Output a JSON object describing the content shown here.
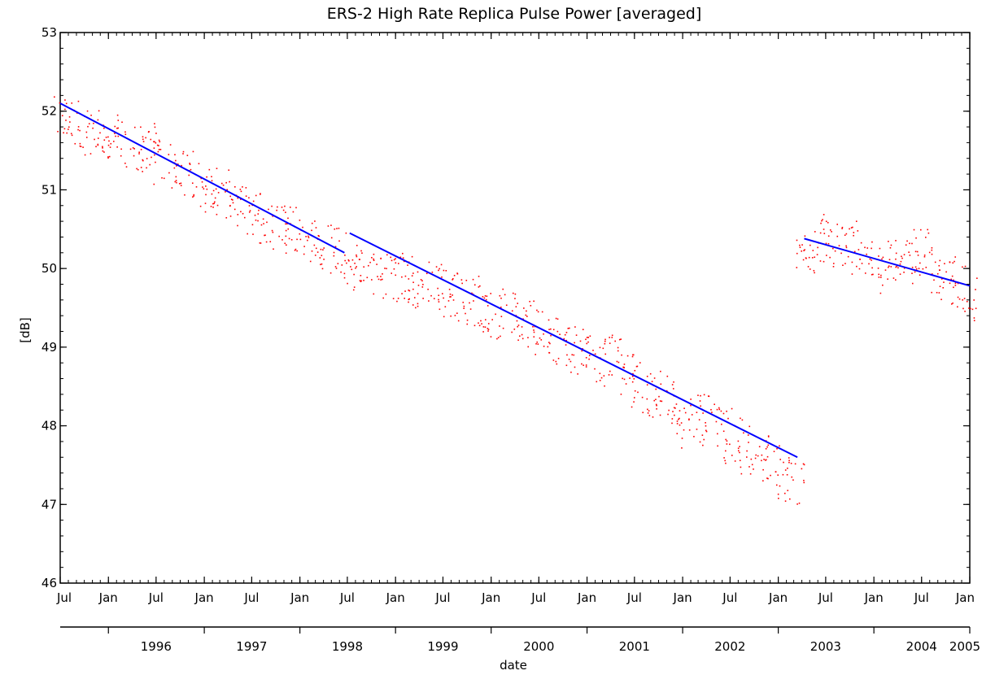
{
  "chart_data": {
    "type": "scatter",
    "title": "ERS-2 High Rate Replica Pulse Power [averaged]",
    "xlabel": "date",
    "ylabel": "[dB]",
    "xlim": [
      "1995-07-01",
      "2005-01-01"
    ],
    "ylim": [
      46,
      53
    ],
    "yticks": [
      46,
      47,
      48,
      49,
      50,
      51,
      52,
      53
    ],
    "xticks_months": [
      "Jul",
      "Jan",
      "Jul",
      "Jan",
      "Jul",
      "Jan",
      "Jul",
      "Jan",
      "Jul",
      "Jan",
      "Jul",
      "Jan",
      "Jul",
      "Jan",
      "Jul",
      "Jan",
      "Jul",
      "Jan",
      "Jul",
      "Jan"
    ],
    "xticks_years": [
      "1996",
      "1997",
      "1998",
      "1999",
      "2000",
      "2001",
      "2002",
      "2003",
      "2004",
      "2005"
    ],
    "colors": {
      "points": "#ff0000",
      "fit": "#0000ff",
      "axes": "#000000"
    },
    "series": [
      {
        "type": "scatter",
        "values": [
          {
            "x": "1995-07-15",
            "y": 51.95
          },
          {
            "x": "1995-09-01",
            "y": 51.85
          },
          {
            "x": "1995-10-15",
            "y": 51.75
          },
          {
            "x": "1995-12-01",
            "y": 51.7
          },
          {
            "x": "1996-01-15",
            "y": 51.65
          },
          {
            "x": "1996-03-01",
            "y": 51.6
          },
          {
            "x": "1996-04-15",
            "y": 51.55
          },
          {
            "x": "1996-06-01",
            "y": 51.55
          },
          {
            "x": "1996-07-15",
            "y": 51.35
          },
          {
            "x": "1996-09-01",
            "y": 51.3
          },
          {
            "x": "1996-10-15",
            "y": 51.2
          },
          {
            "x": "1996-12-01",
            "y": 51.1
          },
          {
            "x": "1997-01-15",
            "y": 51.0
          },
          {
            "x": "1997-03-01",
            "y": 50.95
          },
          {
            "x": "1997-04-15",
            "y": 50.85
          },
          {
            "x": "1997-06-01",
            "y": 50.75
          },
          {
            "x": "1997-07-15",
            "y": 50.7
          },
          {
            "x": "1997-09-01",
            "y": 50.6
          },
          {
            "x": "1997-10-15",
            "y": 50.55
          },
          {
            "x": "1997-12-01",
            "y": 50.5
          },
          {
            "x": "1998-01-15",
            "y": 50.4
          },
          {
            "x": "1998-03-01",
            "y": 50.35
          },
          {
            "x": "1998-04-15",
            "y": 50.3
          },
          {
            "x": "1998-06-01",
            "y": 50.25
          },
          {
            "x": "1998-07-15",
            "y": 50.1
          },
          {
            "x": "1998-09-01",
            "y": 50.0
          },
          {
            "x": "1998-10-15",
            "y": 49.95
          },
          {
            "x": "1998-12-01",
            "y": 49.9
          },
          {
            "x": "1999-01-15",
            "y": 49.9
          },
          {
            "x": "1999-03-01",
            "y": 49.85
          },
          {
            "x": "1999-04-15",
            "y": 49.8
          },
          {
            "x": "1999-06-01",
            "y": 49.8
          },
          {
            "x": "1999-07-15",
            "y": 49.7
          },
          {
            "x": "1999-09-01",
            "y": 49.65
          },
          {
            "x": "1999-10-15",
            "y": 49.6
          },
          {
            "x": "1999-12-01",
            "y": 49.5
          },
          {
            "x": "2000-01-15",
            "y": 49.45
          },
          {
            "x": "2000-03-01",
            "y": 49.4
          },
          {
            "x": "2000-04-15",
            "y": 49.35
          },
          {
            "x": "2000-06-01",
            "y": 49.3
          },
          {
            "x": "2000-07-15",
            "y": 49.2
          },
          {
            "x": "2000-09-01",
            "y": 49.1
          },
          {
            "x": "2000-10-15",
            "y": 49.0
          },
          {
            "x": "2000-12-01",
            "y": 48.95
          },
          {
            "x": "2001-01-15",
            "y": 48.9
          },
          {
            "x": "2001-03-01",
            "y": 48.85
          },
          {
            "x": "2001-04-15",
            "y": 48.8
          },
          {
            "x": "2001-06-01",
            "y": 48.7
          },
          {
            "x": "2001-07-15",
            "y": 48.5
          },
          {
            "x": "2001-09-01",
            "y": 48.4
          },
          {
            "x": "2001-10-15",
            "y": 48.4
          },
          {
            "x": "2001-12-01",
            "y": 48.3
          },
          {
            "x": "2002-01-15",
            "y": 48.0
          },
          {
            "x": "2002-03-01",
            "y": 48.1
          },
          {
            "x": "2002-04-15",
            "y": 48.05
          },
          {
            "x": "2002-06-01",
            "y": 48.0
          },
          {
            "x": "2002-07-15",
            "y": 47.8
          },
          {
            "x": "2002-09-01",
            "y": 47.7
          },
          {
            "x": "2002-10-15",
            "y": 47.6
          },
          {
            "x": "2002-12-01",
            "y": 47.5
          },
          {
            "x": "2003-01-15",
            "y": 47.3
          },
          {
            "x": "2003-03-01",
            "y": 47.3
          },
          {
            "x": "2003-04-10",
            "y": 50.25
          },
          {
            "x": "2003-05-15",
            "y": 50.35
          },
          {
            "x": "2003-07-01",
            "y": 50.45
          },
          {
            "x": "2003-08-15",
            "y": 50.3
          },
          {
            "x": "2003-10-01",
            "y": 50.3
          },
          {
            "x": "2003-11-15",
            "y": 50.2
          },
          {
            "x": "2004-01-01",
            "y": 50.0
          },
          {
            "x": "2004-02-15",
            "y": 50.1
          },
          {
            "x": "2004-04-01",
            "y": 50.2
          },
          {
            "x": "2004-05-15",
            "y": 50.1
          },
          {
            "x": "2004-07-01",
            "y": 50.2
          },
          {
            "x": "2004-08-15",
            "y": 50.0
          },
          {
            "x": "2004-10-01",
            "y": 49.9
          },
          {
            "x": "2004-11-15",
            "y": 49.8
          },
          {
            "x": "2004-12-20",
            "y": 49.6
          }
        ]
      },
      {
        "type": "line",
        "segments": [
          [
            {
              "x": "1995-07-01",
              "y": 52.1
            },
            {
              "x": "1998-06-20",
              "y": 50.2
            }
          ],
          [
            {
              "x": "1998-07-10",
              "y": 50.45
            },
            {
              "x": "2003-03-15",
              "y": 47.6
            }
          ],
          [
            {
              "x": "2003-04-10",
              "y": 50.38
            },
            {
              "x": "2005-01-01",
              "y": 49.78
            }
          ]
        ]
      }
    ]
  }
}
